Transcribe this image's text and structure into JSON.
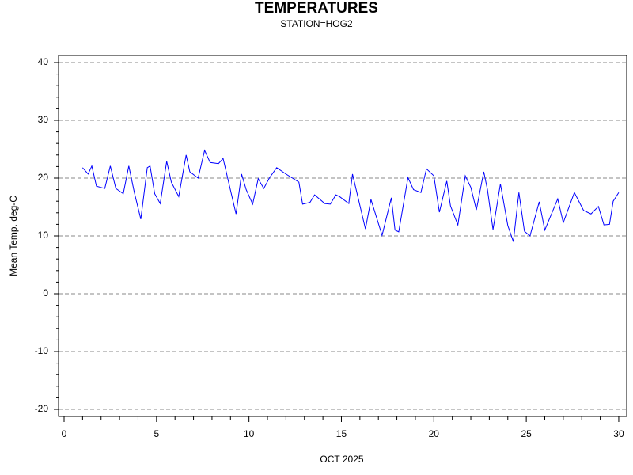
{
  "chart_data": {
    "type": "line",
    "title": "TEMPERATURES",
    "subtitle": "STATION=HOG2",
    "x_label": "OCT 2025",
    "y_label": "Mean Temp. deg-C",
    "x": [
      1.0,
      1.3,
      1.5,
      1.75,
      2.2,
      2.5,
      2.8,
      3.2,
      3.5,
      3.8,
      4.15,
      4.5,
      4.65,
      4.9,
      5.2,
      5.55,
      5.8,
      6.2,
      6.6,
      6.8,
      7.25,
      7.6,
      7.9,
      8.35,
      8.6,
      8.95,
      9.3,
      9.6,
      9.85,
      10.2,
      10.5,
      10.8,
      11.1,
      11.5,
      12.0,
      12.7,
      12.9,
      13.3,
      13.55,
      14.1,
      14.4,
      14.7,
      14.9,
      15.4,
      15.6,
      16.3,
      16.6,
      17.2,
      17.7,
      17.9,
      18.1,
      18.6,
      18.9,
      19.3,
      19.6,
      20.0,
      20.3,
      20.7,
      20.9,
      21.3,
      21.7,
      22.0,
      22.3,
      22.7,
      22.9,
      23.2,
      23.6,
      24.0,
      24.3,
      24.6,
      24.9,
      25.2,
      25.7,
      26.0,
      26.7,
      27.0,
      27.6,
      28.1,
      28.5,
      28.9,
      29.2,
      29.5,
      29.7,
      30.0
    ],
    "values": [
      21.8,
      20.7,
      22.1,
      18.6,
      18.2,
      22.1,
      18.2,
      17.3,
      22.1,
      17.5,
      12.9,
      21.8,
      22.1,
      17.3,
      15.6,
      22.9,
      19.3,
      16.8,
      24.0,
      21.1,
      20.0,
      24.8,
      22.7,
      22.5,
      23.4,
      18.6,
      13.8,
      20.7,
      18.0,
      15.5,
      19.9,
      18.2,
      20.0,
      21.8,
      20.7,
      19.3,
      15.5,
      15.8,
      17.1,
      15.6,
      15.5,
      17.1,
      16.8,
      15.6,
      20.7,
      11.2,
      16.3,
      10.1,
      16.6,
      11.0,
      10.7,
      20.1,
      18.0,
      17.5,
      21.6,
      20.4,
      14.1,
      19.5,
      15.2,
      11.9,
      20.4,
      18.4,
      14.5,
      21.1,
      18.0,
      11.1,
      19.0,
      11.8,
      9.0,
      17.5,
      10.8,
      10.0,
      15.9,
      11.0,
      16.4,
      12.3,
      17.5,
      14.4,
      13.8,
      15.1,
      11.9,
      12.0,
      16.0,
      17.5
    ],
    "color": "#0000ff",
    "xlim": [
      -0.3,
      30.43
    ],
    "ylim": [
      -21.23,
      41.23
    ],
    "xticks": [
      0,
      5,
      10,
      15,
      20,
      25,
      30
    ],
    "yticks": [
      -20,
      -10,
      0,
      10,
      20,
      30,
      40
    ],
    "grid": true
  }
}
